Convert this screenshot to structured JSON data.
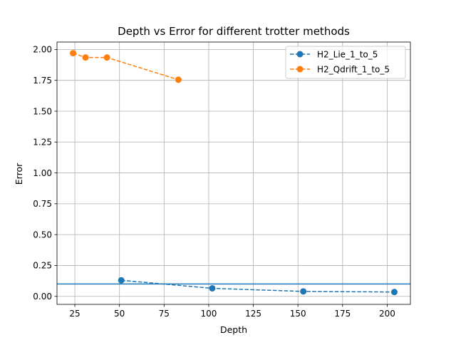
{
  "chart_data": {
    "type": "line",
    "title": "Depth vs Error for different trotter methods",
    "xlabel": "Depth",
    "ylabel": "Error",
    "xlim": [
      15,
      213
    ],
    "ylim": [
      -0.065,
      2.06
    ],
    "xticks": [
      25,
      50,
      75,
      100,
      125,
      150,
      175,
      200
    ],
    "xtick_labels": [
      "25",
      "50",
      "75",
      "100",
      "125",
      "150",
      "175",
      "200"
    ],
    "yticks": [
      0.0,
      0.25,
      0.5,
      0.75,
      1.0,
      1.25,
      1.5,
      1.75,
      2.0
    ],
    "ytick_labels": [
      "0.00",
      "0.25",
      "0.50",
      "0.75",
      "1.00",
      "1.25",
      "1.50",
      "1.75",
      "2.00"
    ],
    "grid": true,
    "legend_position": "top-right",
    "series": [
      {
        "name": "H2_Lie_1_to_5",
        "color": "#1f77b4",
        "line_style": "dashed",
        "marker": "circle",
        "x": [
          51,
          102,
          153,
          204
        ],
        "y": [
          0.13,
          0.065,
          0.04,
          0.035
        ]
      },
      {
        "name": "H2_Qdrift_1_to_5",
        "color": "#ff7f0e",
        "line_style": "dashed",
        "marker": "circle",
        "x": [
          24,
          31,
          43,
          83
        ],
        "y": [
          1.97,
          1.935,
          1.935,
          1.755
        ]
      }
    ],
    "hlines": [
      {
        "y": 0.1,
        "color": "#1f77b4"
      }
    ]
  }
}
